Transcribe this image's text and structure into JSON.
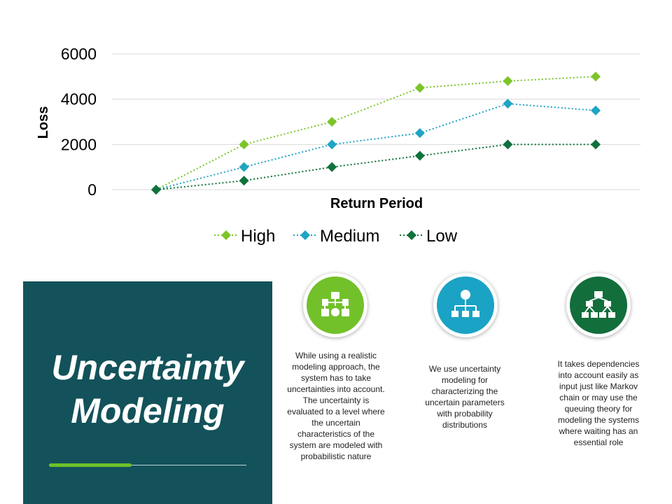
{
  "chart_data": {
    "type": "line",
    "categories": [
      "",
      "",
      "",
      "",
      "",
      ""
    ],
    "series": [
      {
        "name": "High",
        "color": "#7dc42a",
        "values": [
          0,
          2000,
          3000,
          4500,
          4800,
          5000
        ]
      },
      {
        "name": "Medium",
        "color": "#1fa4c4",
        "values": [
          0,
          1000,
          2000,
          2500,
          3800,
          3500
        ]
      },
      {
        "name": "Low",
        "color": "#11713c",
        "values": [
          0,
          400,
          1000,
          1500,
          2000,
          2000
        ]
      }
    ],
    "title": "",
    "xlabel": "Return Period",
    "ylabel": "Loss",
    "ylim": [
      0,
      6000
    ],
    "yticks": [
      "0",
      "2000",
      "4000",
      "6000"
    ],
    "line_style": "dotted",
    "marker": "diamond",
    "grid": true,
    "legend": "bottom"
  },
  "panel": {
    "title_line1": "Uncertainty",
    "title_line2": "Modeling",
    "accent_color": "#6cc12a",
    "background": "#13525a"
  },
  "features": [
    {
      "icon": "flowchart-icon",
      "color": "#72c12a",
      "text": "While using a realistic modeling approach, the system has to take uncertainties into account. The uncertainty is evaluated to a level where the uncertain characteristics of the system are modeled with probabilistic nature"
    },
    {
      "icon": "hierarchy-icon",
      "color": "#1aa3c5",
      "text": "We use uncertainty modeling for characterizing the uncertain parameters with probability distributions"
    },
    {
      "icon": "network-icon",
      "color": "#126e3b",
      "text": "It takes dependencies into account easily as input just like Markov chain or may use the queuing theory for modeling the systems where waiting has an essential role"
    }
  ]
}
